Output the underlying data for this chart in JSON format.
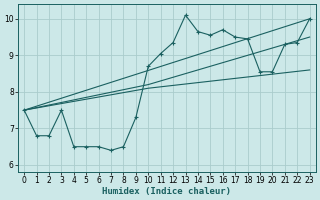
{
  "xlabel": "Humidex (Indice chaleur)",
  "bg_color": "#cce8e8",
  "grid_color": "#aacccc",
  "line_color": "#1a6060",
  "xlim": [
    -0.5,
    23.5
  ],
  "ylim": [
    5.8,
    10.4
  ],
  "yticks": [
    6,
    7,
    8,
    9,
    10
  ],
  "xticks": [
    0,
    1,
    2,
    3,
    4,
    5,
    6,
    7,
    8,
    9,
    10,
    11,
    12,
    13,
    14,
    15,
    16,
    17,
    18,
    19,
    20,
    21,
    22,
    23
  ],
  "series1_x": [
    0,
    1,
    2,
    3,
    4,
    5,
    6,
    7,
    8,
    9,
    10,
    11,
    12,
    13,
    14,
    15,
    16,
    17,
    18,
    19,
    20,
    21,
    22,
    23
  ],
  "series1_y": [
    7.5,
    6.8,
    6.8,
    7.5,
    6.5,
    6.5,
    6.5,
    6.4,
    6.5,
    7.3,
    8.7,
    9.05,
    9.35,
    10.1,
    9.65,
    9.55,
    9.7,
    9.5,
    9.45,
    8.55,
    8.55,
    9.3,
    9.35,
    10.0
  ],
  "line1_x": [
    0,
    23
  ],
  "line1_y": [
    7.5,
    10.0
  ],
  "line2_x": [
    0,
    10,
    23
  ],
  "line2_y": [
    7.5,
    8.1,
    8.6
  ],
  "line3_x": [
    0,
    10,
    23
  ],
  "line3_y": [
    7.5,
    8.2,
    9.5
  ]
}
